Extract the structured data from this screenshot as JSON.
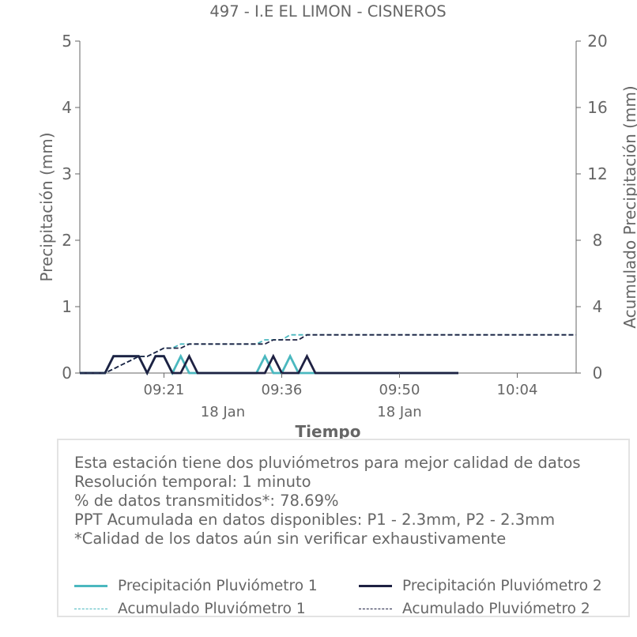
{
  "chart_data": {
    "type": "line",
    "title": "497 - I.E EL LIMON - CISNEROS",
    "xlabel": "Tiempo",
    "ylabel_left": "Precipitación (mm)",
    "ylabel_right": "Acumulado Precipitación (mm)",
    "ylim_left": [
      0,
      5
    ],
    "ylim_right": [
      0,
      20
    ],
    "yticks_left": [
      "0",
      "1",
      "2",
      "3",
      "4",
      "5"
    ],
    "yticks_right": [
      "0",
      "4",
      "8",
      "12",
      "16",
      "20"
    ],
    "x_ticks": [
      {
        "time": "09:21",
        "date": "18 Jan",
        "minute": 21
      },
      {
        "time": "09:36",
        "date": "",
        "minute": 35
      },
      {
        "time": "09:50",
        "date": "18 Jan",
        "minute": 49
      },
      {
        "time": "10:04",
        "date": "",
        "minute": 63
      }
    ],
    "date_labels": [
      {
        "label": "18 Jan",
        "minute": 28
      },
      {
        "label": "18 Jan",
        "minute": 49
      }
    ],
    "x_range_minutes": [
      11,
      70
    ],
    "grid": false,
    "series": [
      {
        "name": "Precipitación Pluviómetro 1",
        "axis": "left",
        "style": "solid",
        "color": "#4bb8bf",
        "x": [
          11,
          14,
          15,
          16,
          17,
          18,
          19,
          20,
          21,
          22,
          23,
          24,
          25,
          26,
          27,
          28,
          29,
          30,
          31,
          32,
          33,
          34,
          35,
          36,
          37,
          38,
          39,
          40,
          41,
          42,
          43,
          44,
          45,
          46,
          47,
          48,
          49,
          50,
          51,
          52,
          53,
          54,
          55,
          56
        ],
        "y": [
          0,
          0,
          0.254,
          0.254,
          0.254,
          0.254,
          0,
          0.254,
          0.254,
          0,
          0.254,
          0,
          0,
          0,
          0,
          0,
          0,
          0,
          0,
          0,
          0.254,
          0,
          0,
          0.254,
          0,
          0,
          0,
          0,
          0,
          0,
          0,
          0,
          0,
          0,
          0,
          0,
          0,
          0,
          0,
          0,
          0,
          0,
          0,
          0
        ]
      },
      {
        "name": "Precipitación Pluviómetro 2",
        "axis": "left",
        "style": "solid",
        "color": "#1e2142",
        "x": [
          11,
          14,
          15,
          16,
          17,
          18,
          19,
          20,
          21,
          22,
          23,
          24,
          25,
          26,
          27,
          28,
          29,
          30,
          31,
          32,
          33,
          34,
          35,
          36,
          37,
          38,
          39,
          40,
          41,
          42,
          43,
          44,
          45,
          46,
          47,
          48,
          49,
          50,
          51,
          52,
          53,
          54,
          55,
          56
        ],
        "y": [
          0,
          0,
          0.254,
          0.254,
          0.254,
          0.254,
          0,
          0.254,
          0.254,
          0,
          0,
          0.254,
          0,
          0,
          0,
          0,
          0,
          0,
          0,
          0,
          0,
          0.254,
          0,
          0,
          0,
          0.254,
          0,
          0,
          0,
          0,
          0,
          0,
          0,
          0,
          0,
          0,
          0,
          0,
          0,
          0,
          0,
          0,
          0,
          0
        ]
      },
      {
        "name": "Acumulado Pluviómetro 1",
        "axis": "right",
        "style": "dashed",
        "color": "#4bb8bf",
        "x": [
          11,
          14,
          15,
          16,
          17,
          18,
          19,
          20,
          21,
          22,
          23,
          24,
          25,
          32,
          33,
          34,
          35,
          36,
          37,
          38,
          70
        ],
        "y": [
          0,
          0,
          0.25,
          0.5,
          0.75,
          1.0,
          1.0,
          1.25,
          1.5,
          1.5,
          1.75,
          1.75,
          1.75,
          1.75,
          2.0,
          2.0,
          2.0,
          2.3,
          2.3,
          2.3,
          2.3
        ]
      },
      {
        "name": "Acumulado Pluviómetro 2",
        "axis": "right",
        "style": "dashed",
        "color": "#1e2142",
        "x": [
          11,
          14,
          15,
          16,
          17,
          18,
          19,
          20,
          21,
          22,
          23,
          24,
          25,
          33,
          34,
          35,
          36,
          37,
          38,
          70
        ],
        "y": [
          0,
          0,
          0.25,
          0.5,
          0.75,
          1.0,
          1.0,
          1.25,
          1.5,
          1.5,
          1.5,
          1.75,
          1.75,
          1.75,
          2.0,
          2.0,
          2.0,
          2.0,
          2.3,
          2.3
        ]
      }
    ]
  },
  "info": {
    "line1": "Esta estación tiene dos pluviómetros para mejor calidad de datos",
    "line2": "Resolución temporal: 1 minuto",
    "line3": "% de datos transmitidos*: 78.69%",
    "line4": "PPT Acumulada en datos disponibles: P1 - 2.3mm, P2 - 2.3mm",
    "line5": "*Calidad de los datos aún sin verificar exhaustivamente"
  },
  "legend": {
    "p1": "Precipitación Pluviómetro 1",
    "p2": "Precipitación Pluviómetro 2",
    "a1": "Acumulado Pluviómetro 1",
    "a2": "Acumulado Pluviómetro 2",
    "color1": "#4bb8bf",
    "color2": "#1e2142"
  }
}
